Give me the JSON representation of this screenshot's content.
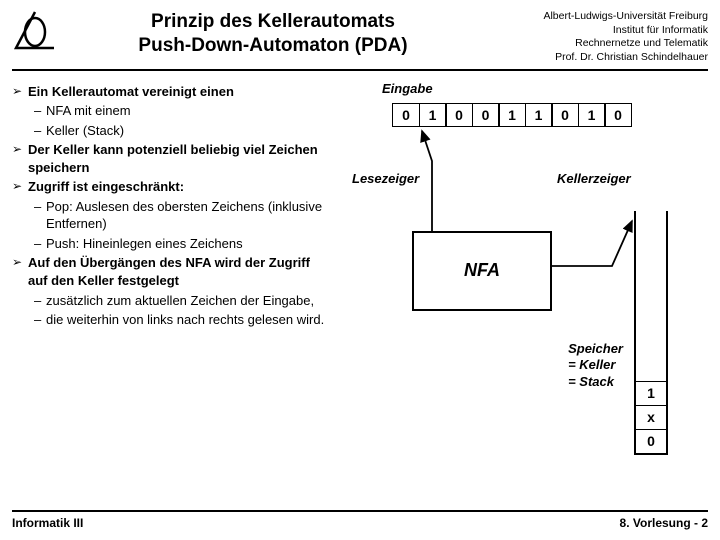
{
  "header": {
    "title1": "Prinzip des Kellerautomats",
    "title2": "Push-Down-Automaton (PDA)",
    "affil1": "Albert-Ludwigs-Universität Freiburg",
    "affil2": "Institut für Informatik",
    "affil3": "Rechnernetze und Telematik",
    "affil4": "Prof. Dr. Christian Schindelhauer"
  },
  "bullets": {
    "b1": "Ein Kellerautomat vereinigt einen",
    "b1a": "NFA mit einem",
    "b1b": "Keller (Stack)",
    "b2": "Der Keller kann potenziell beliebig viel Zeichen speichern",
    "b3": "Zugriff ist eingeschränkt:",
    "b3a": "Pop: Auslesen des obersten Zeichens (inklusive Entfernen)",
    "b3b": "Push: Hineinlegen eines Zeichens",
    "b4": "Auf den Übergängen des NFA wird der Zugriff auf den Keller festgelegt",
    "b4a": "zusätzlich zum aktuellen Zeichen der Eingabe,",
    "b4b": "die weiterhin von links nach rechts gelesen wird."
  },
  "diagram": {
    "eingabe_label": "Eingabe",
    "tape": [
      "0",
      "1",
      "0",
      "0",
      "1",
      "1",
      "0",
      "1",
      "0"
    ],
    "lesezeiger_label": "Lesezeiger",
    "kellerzeiger_label": "Kellerzeiger",
    "nfa_label": "NFA",
    "speicher_label1": "Speicher",
    "speicher_label2": "= Keller",
    "speicher_label3": "= Stack",
    "stack_cells": [
      "1",
      "x",
      "0"
    ]
  },
  "footer": {
    "left": "Informatik III",
    "right": "8. Vorlesung - 2"
  },
  "colors": {
    "text": "#000000",
    "bg": "#ffffff"
  }
}
